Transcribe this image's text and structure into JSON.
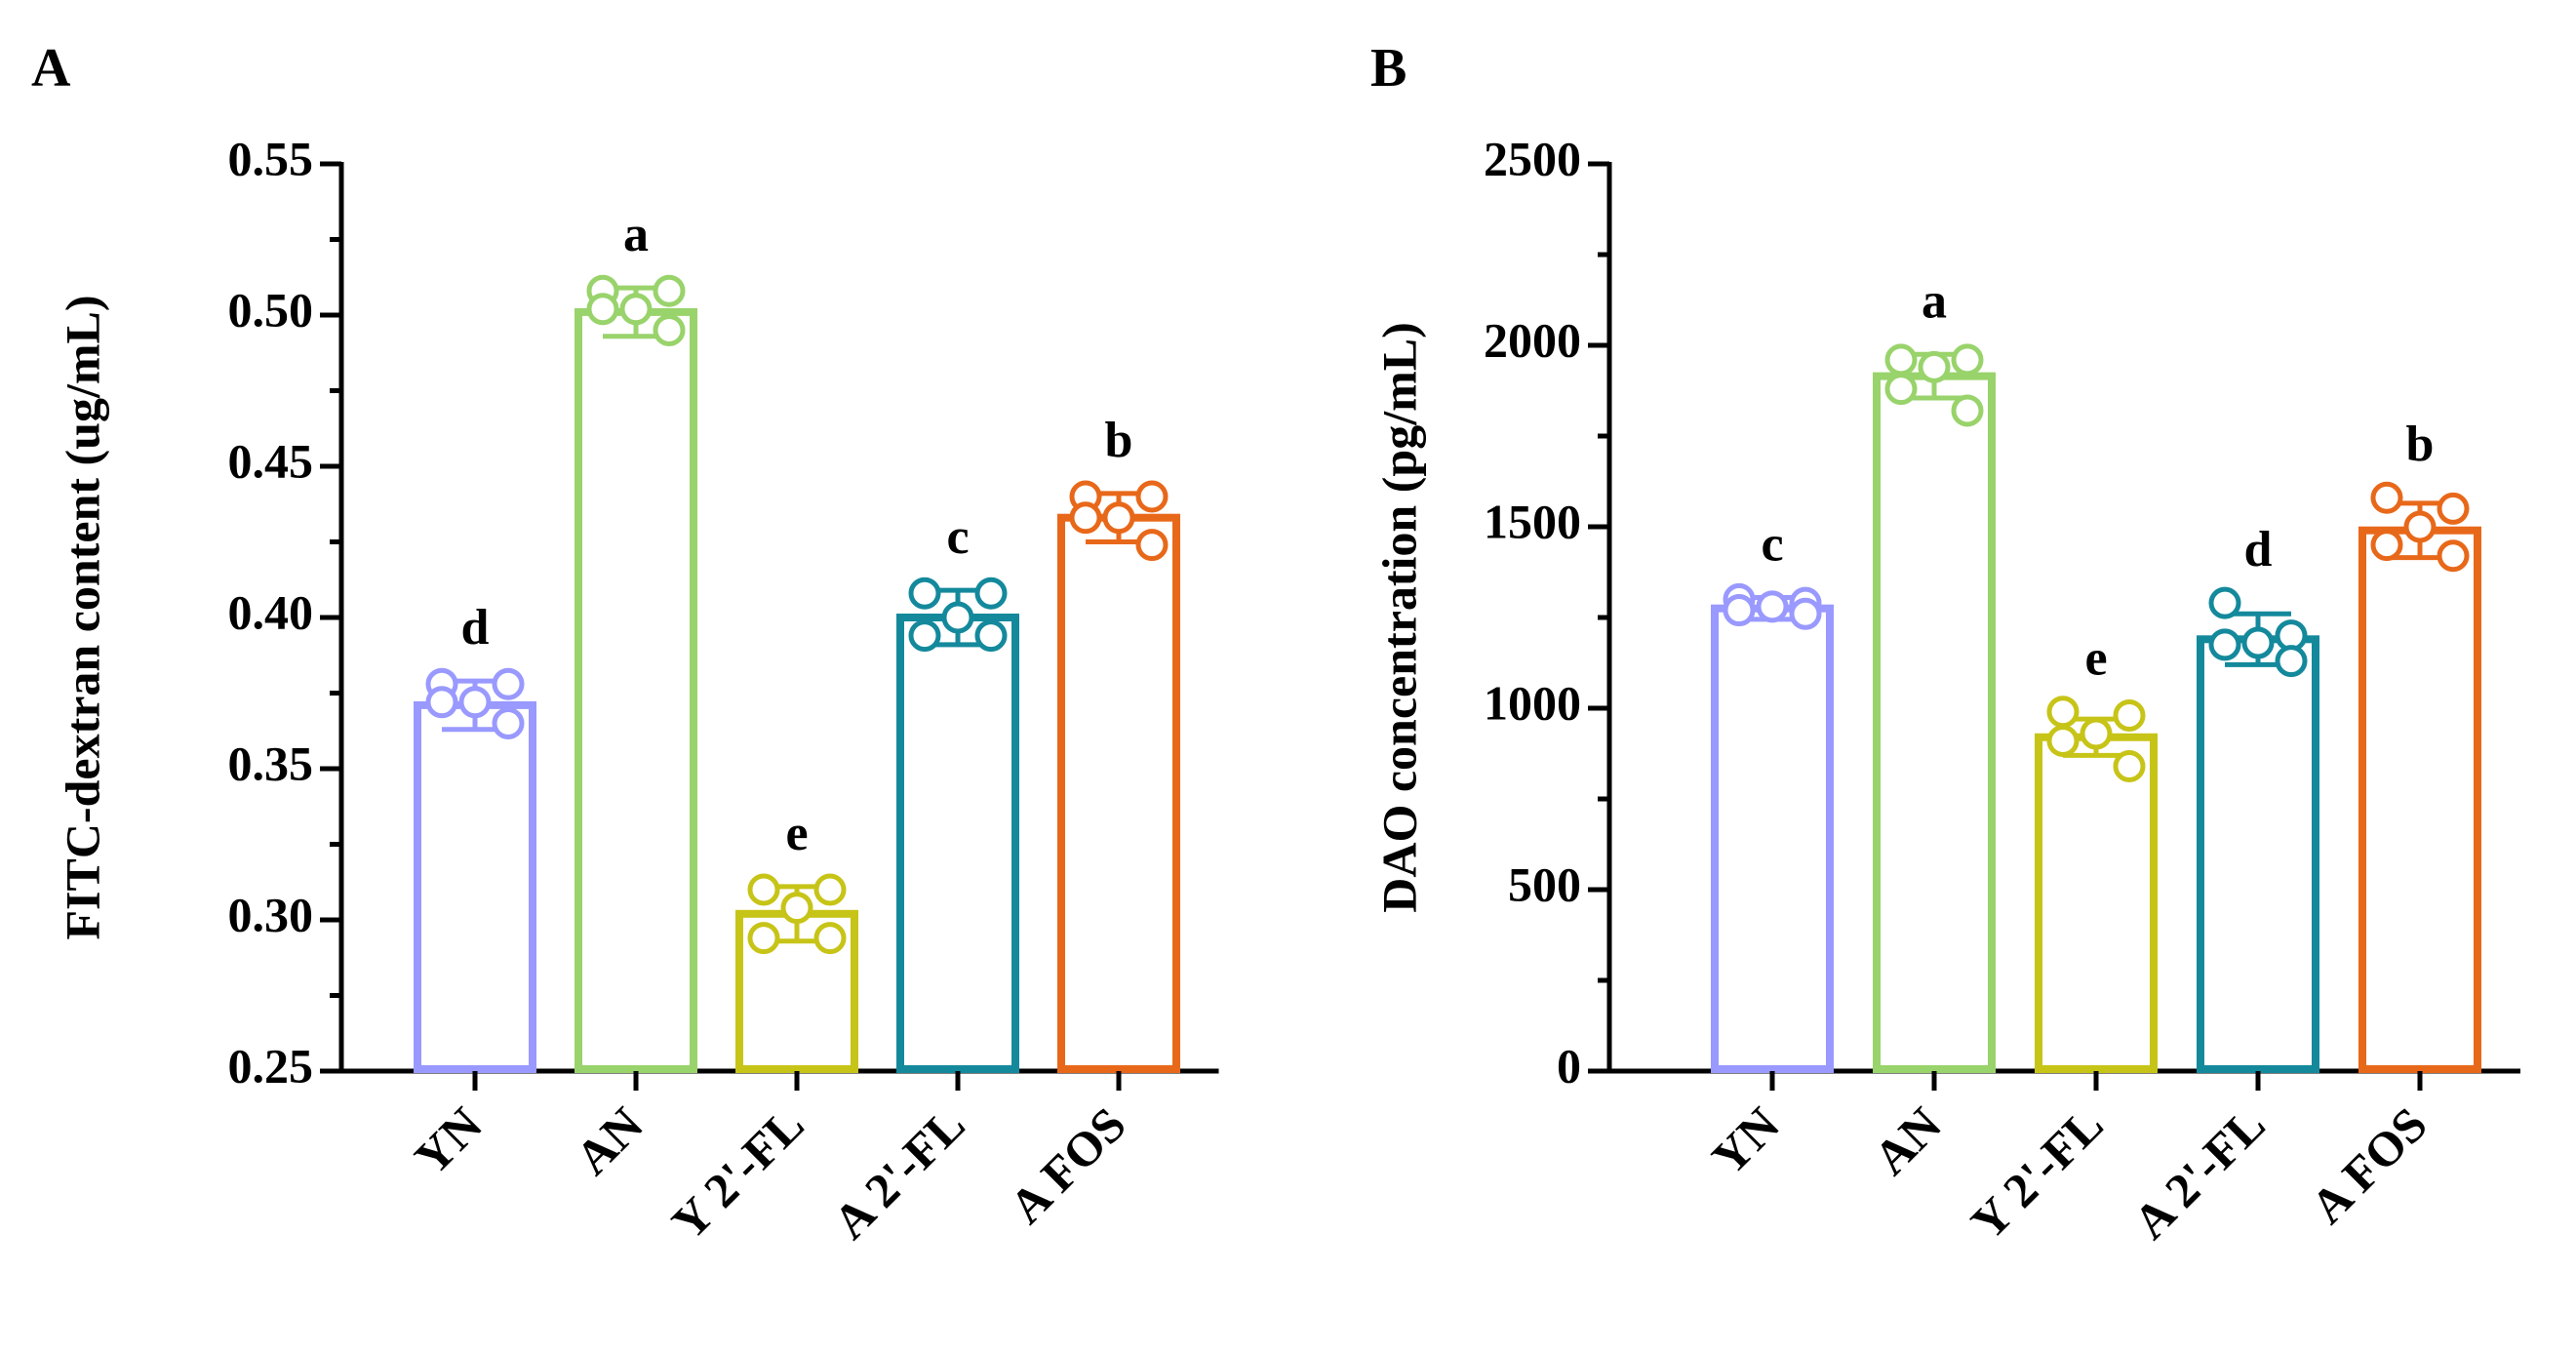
{
  "chart_data": [
    {
      "panel_label": "A",
      "type": "bar",
      "ylabel": "FITC-dextran content (ug/mL)",
      "xlabel": "",
      "ylim": [
        0.25,
        0.55
      ],
      "yticks": [
        0.25,
        0.3,
        0.35,
        0.4,
        0.45,
        0.5,
        0.55
      ],
      "ytick_labels": [
        "0.25",
        "0.30",
        "0.35",
        "0.40",
        "0.45",
        "0.50",
        "0.55"
      ],
      "categories": [
        "YN",
        "AN",
        "Y 2'-FL",
        "A 2'-FL",
        "A FOS"
      ],
      "colors": [
        "#9999ff",
        "#99d36b",
        "#c7c418",
        "#14899c",
        "#e8681a"
      ],
      "values": [
        0.371,
        0.501,
        0.302,
        0.4,
        0.433
      ],
      "errors": [
        0.008,
        0.008,
        0.009,
        0.009,
        0.008
      ],
      "points": [
        [
          0.378,
          0.378,
          0.372,
          0.372,
          0.365
        ],
        [
          0.508,
          0.508,
          0.502,
          0.502,
          0.495
        ],
        [
          0.31,
          0.31,
          0.304,
          0.294,
          0.294
        ],
        [
          0.408,
          0.408,
          0.4,
          0.394,
          0.394
        ],
        [
          0.44,
          0.44,
          0.433,
          0.433,
          0.424
        ]
      ],
      "letters": [
        "d",
        "a",
        "e",
        "c",
        "b"
      ]
    },
    {
      "panel_label": "B",
      "type": "bar",
      "ylabel": "DAO concentration (pg/mL)",
      "xlabel": "",
      "ylim": [
        0,
        2500
      ],
      "yticks": [
        0,
        500,
        1000,
        1500,
        2000,
        2500
      ],
      "ytick_labels": [
        "0",
        "500",
        "1000",
        "1500",
        "2000",
        "2500"
      ],
      "categories": [
        "YN",
        "AN",
        "Y 2'-FL",
        "A 2'-FL",
        "A FOS"
      ],
      "colors": [
        "#9999ff",
        "#99d36b",
        "#c7c418",
        "#14899c",
        "#e8681a"
      ],
      "values": [
        1275,
        1915,
        920,
        1190,
        1490
      ],
      "errors": [
        30,
        60,
        50,
        70,
        75
      ],
      "points": [
        [
          1300,
          1290,
          1280,
          1270,
          1260
        ],
        [
          1960,
          1960,
          1940,
          1880,
          1820
        ],
        [
          990,
          980,
          930,
          910,
          840
        ],
        [
          1290,
          1200,
          1180,
          1175,
          1130
        ],
        [
          1580,
          1550,
          1500,
          1450,
          1420
        ]
      ],
      "letters": [
        "c",
        "a",
        "e",
        "d",
        "b"
      ]
    }
  ]
}
